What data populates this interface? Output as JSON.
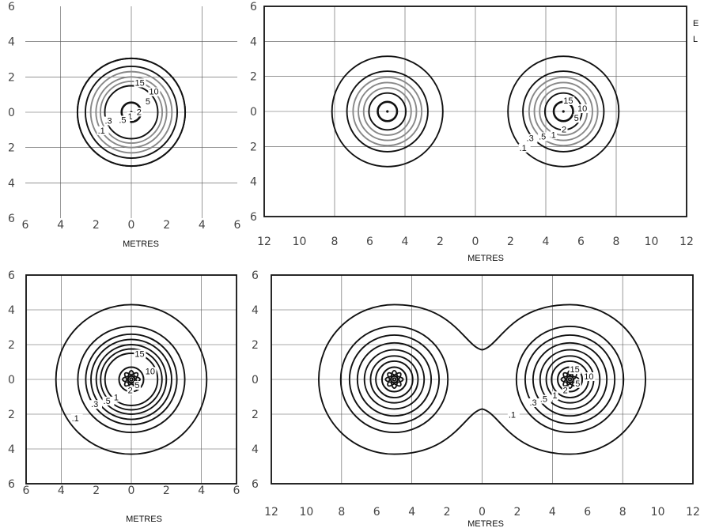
{
  "side_notes": [
    "E",
    "L"
  ],
  "chart_data": [
    {
      "type": "contour",
      "position": "top-left",
      "xlabel": "METRES",
      "xlim": [
        -6,
        6
      ],
      "ylim": [
        -6,
        6
      ],
      "x_tick_labels": [
        "6",
        "4",
        "2",
        "0",
        "2",
        "4",
        "6"
      ],
      "y_tick_labels": [
        "6",
        "4",
        "2",
        "0",
        "2",
        "4",
        "6"
      ],
      "frame": false,
      "grid": true,
      "sources": [
        {
          "x": 0,
          "y": 0
        }
      ],
      "contour_levels": [
        "15",
        "10",
        "5",
        "2",
        "1",
        ".5",
        ".3",
        ".1"
      ],
      "contour_label_positions": [
        [
          0.2,
          1.5
        ],
        [
          1.0,
          1.0
        ],
        [
          0.8,
          0.45
        ],
        [
          0.3,
          -0.15
        ],
        [
          -0.2,
          -0.4
        ],
        [
          -0.7,
          -0.6
        ],
        [
          -1.5,
          -0.65
        ],
        [
          -1.9,
          -1.2
        ]
      ]
    },
    {
      "type": "contour",
      "position": "top-right",
      "xlabel": "METRES",
      "xlim": [
        -12,
        12
      ],
      "ylim": [
        -6,
        6
      ],
      "x_tick_labels": [
        "12",
        "10",
        "8",
        "6",
        "4",
        "2",
        "0",
        "2",
        "4",
        "6",
        "8",
        "10",
        "12"
      ],
      "y_tick_labels": [
        "6",
        "4",
        "2",
        "0",
        "2",
        "4",
        "6"
      ],
      "frame": true,
      "grid": true,
      "sources": [
        {
          "x": -5,
          "y": 0
        },
        {
          "x": 5,
          "y": 0
        }
      ],
      "contour_levels": [
        "15",
        "10",
        "5",
        "2",
        "1",
        ".5",
        ".3",
        ".1"
      ],
      "contour_label_positions": [
        [
          5.0,
          0.45
        ],
        [
          5.8,
          0.0
        ],
        [
          5.6,
          -0.55
        ],
        [
          4.9,
          -1.2
        ],
        [
          4.3,
          -1.5
        ],
        [
          3.6,
          -1.6
        ],
        [
          2.9,
          -1.7
        ],
        [
          2.5,
          -2.25
        ]
      ]
    },
    {
      "type": "contour",
      "position": "bottom-left",
      "xlabel": "METRES",
      "xlim": [
        -6,
        6
      ],
      "ylim": [
        -6,
        6
      ],
      "x_tick_labels": [
        "6",
        "4",
        "2",
        "0",
        "2",
        "4",
        "6"
      ],
      "y_tick_labels": [
        "6",
        "4",
        "2",
        "0",
        "2",
        "4",
        "6"
      ],
      "frame": true,
      "grid": true,
      "sources": [
        {
          "x": 0,
          "y": 0
        }
      ],
      "contour_levels": [
        "15",
        "10",
        "5",
        "2",
        "1",
        ".5",
        ".3",
        ".1"
      ],
      "contour_label_positions": [
        [
          0.2,
          1.3
        ],
        [
          0.8,
          0.3
        ],
        [
          0.2,
          -0.5
        ],
        [
          -0.2,
          -0.8
        ],
        [
          -1.0,
          -1.2
        ],
        [
          -1.6,
          -1.4
        ],
        [
          -2.3,
          -1.6
        ],
        [
          -3.4,
          -2.4
        ]
      ]
    },
    {
      "type": "contour",
      "position": "bottom-right",
      "xlabel": "METRES",
      "xlim": [
        -12,
        12
      ],
      "ylim": [
        -6,
        6
      ],
      "x_tick_labels": [
        "12",
        "10",
        "8",
        "6",
        "4",
        "2",
        "0",
        "2",
        "4",
        "6",
        "8",
        "10",
        "12"
      ],
      "y_tick_labels": [
        "6",
        "4",
        "2",
        "0",
        "2",
        "4",
        "6"
      ],
      "frame": true,
      "grid": true,
      "sources": [
        {
          "x": -5,
          "y": 0
        },
        {
          "x": 5,
          "y": 0
        }
      ],
      "contour_levels": [
        "15",
        "10",
        "5",
        "2",
        "1",
        ".5",
        ".3",
        ".1"
      ],
      "contour_label_positions": [
        [
          5.0,
          0.4
        ],
        [
          5.8,
          0.0
        ],
        [
          5.3,
          -0.4
        ],
        [
          4.6,
          -0.8
        ],
        [
          4.0,
          -1.1
        ],
        [
          3.3,
          -1.3
        ],
        [
          2.7,
          -1.5
        ],
        [
          1.5,
          -2.2
        ]
      ]
    }
  ]
}
